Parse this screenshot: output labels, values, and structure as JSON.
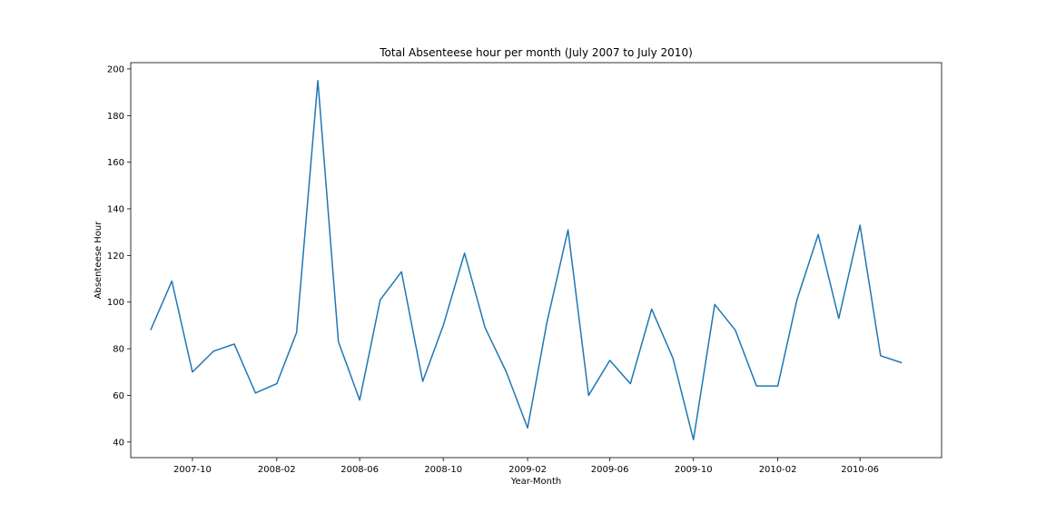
{
  "chart_data": {
    "type": "line",
    "title": "Total Absenteese hour per month (July 2007 to July 2010)",
    "xlabel": "Year-Month",
    "ylabel": "Absenteese Hour",
    "x": [
      "2007-08",
      "2007-09",
      "2007-10",
      "2007-11",
      "2007-12",
      "2008-01",
      "2008-02",
      "2008-03",
      "2008-04",
      "2008-05",
      "2008-06",
      "2008-07",
      "2008-08",
      "2008-09",
      "2008-10",
      "2008-11",
      "2008-12",
      "2009-01",
      "2009-02",
      "2009-03",
      "2009-04",
      "2009-05",
      "2009-06",
      "2009-07",
      "2009-08",
      "2009-09",
      "2009-10",
      "2009-11",
      "2009-12",
      "2010-01",
      "2010-02",
      "2010-03",
      "2010-04",
      "2010-05",
      "2010-06",
      "2010-07",
      "2010-08"
    ],
    "series": [
      {
        "values": [
          88,
          109,
          70,
          79,
          82,
          61,
          65,
          87,
          195,
          83,
          58,
          101,
          113,
          66,
          90,
          121,
          89,
          70,
          46,
          91,
          131,
          60,
          75,
          65,
          97,
          76,
          41,
          99,
          88,
          64,
          64,
          101,
          129,
          93,
          133,
          77,
          74
        ],
        "color": "#1f77b4"
      }
    ],
    "xticks": [
      "2007-10",
      "2008-02",
      "2008-06",
      "2008-10",
      "2009-02",
      "2009-06",
      "2009-10",
      "2010-02",
      "2010-06"
    ],
    "yticks": [
      40,
      60,
      80,
      100,
      120,
      140,
      160,
      180,
      200
    ],
    "xlim": [
      "2007-07-03",
      "2010-09-28"
    ],
    "ylim": [
      33.3,
      202.7
    ],
    "grid": false,
    "legend": "none"
  }
}
